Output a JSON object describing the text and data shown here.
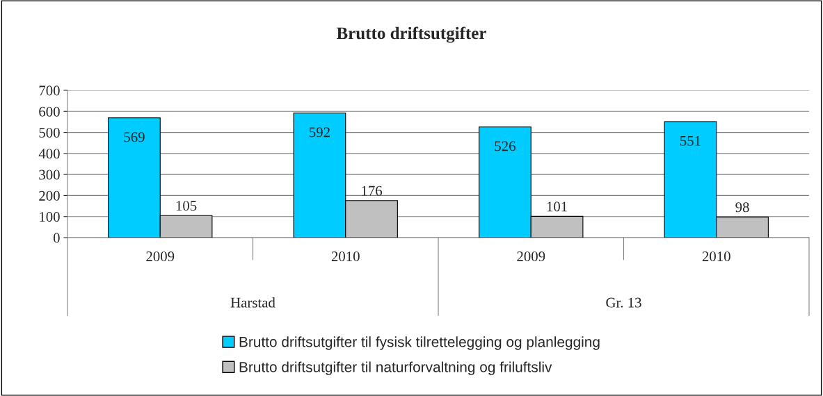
{
  "chart_data": {
    "type": "bar",
    "title": "Brutto driftsutgifter",
    "categories": [
      "2009",
      "2010",
      "2009",
      "2010"
    ],
    "series": [
      {
        "name": "Brutto driftsutgifter til fysisk tilrettelegging og planlegging",
        "color": "#00ccff",
        "values": [
          569,
          592,
          526,
          551
        ]
      },
      {
        "name": "Brutto driftsutgifter til naturforvaltning og friluftsliv",
        "color": "#c0c0c0",
        "values": [
          105,
          176,
          101,
          98
        ]
      }
    ],
    "annotations": [
      "Harstad",
      "Gr. 13"
    ],
    "ylim": [
      0,
      700
    ],
    "yticks": [
      0,
      100,
      200,
      300,
      400,
      500,
      600,
      700
    ],
    "grid": "y",
    "legend": "bottom",
    "data_labels": true
  }
}
